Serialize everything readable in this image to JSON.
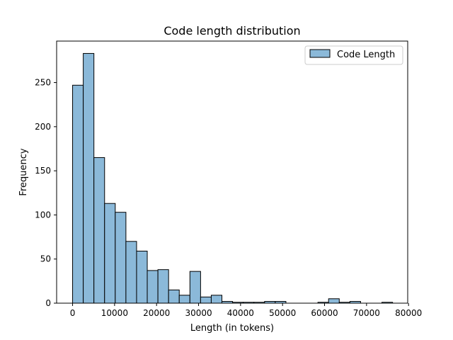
{
  "chart_data": {
    "type": "bar",
    "title": "Code length distribution",
    "xlabel": "Length (in tokens)",
    "ylabel": "Frequency",
    "xlim": [
      -3800,
      79800
    ],
    "ylim": [
      0,
      297
    ],
    "xticks": [
      0,
      10000,
      20000,
      30000,
      40000,
      50000,
      60000,
      70000,
      80000
    ],
    "xtick_labels": [
      "0",
      "10000",
      "20000",
      "30000",
      "40000",
      "50000",
      "60000",
      "70000",
      "80000"
    ],
    "yticks": [
      0,
      50,
      100,
      150,
      200,
      250
    ],
    "ytick_labels": [
      "0",
      "50",
      "100",
      "150",
      "200",
      "250"
    ],
    "grid": false,
    "legend": {
      "position": "top-right",
      "entries": [
        "Code Length"
      ]
    },
    "bar_color": "#8bb9d9",
    "edge_color": "#000000",
    "bin_width": 2540,
    "bin_start": 0,
    "counts": [
      247,
      283,
      165,
      113,
      103,
      70,
      59,
      37,
      38,
      15,
      9,
      36,
      7,
      9,
      2,
      1,
      1,
      1,
      2,
      2,
      0,
      0,
      0,
      1,
      5,
      1,
      2,
      0,
      0,
      1
    ],
    "series": [
      {
        "name": "Code Length"
      }
    ]
  }
}
